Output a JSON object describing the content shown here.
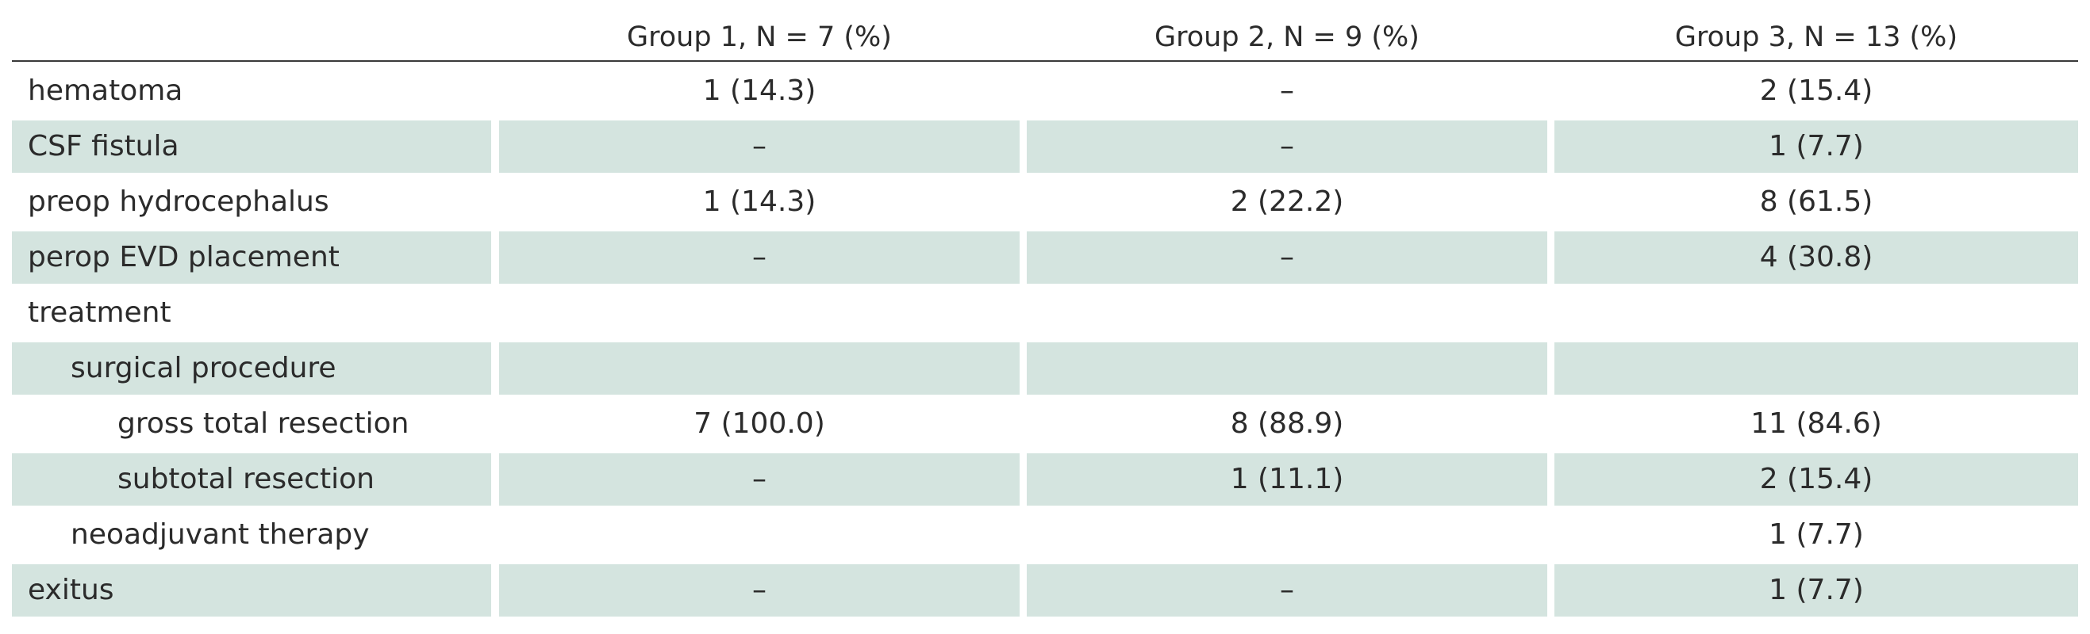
{
  "header": {
    "columns": [
      "",
      "Group 1, N = 7 (%)",
      "Group 2, N = 9 (%)",
      "Group 3, N = 13 (%)"
    ]
  },
  "rows": [
    {
      "label": "hematoma",
      "level": 0,
      "shaded": false,
      "values": [
        "1 (14.3)",
        "–",
        "2 (15.4)"
      ]
    },
    {
      "label": "CSF fistula",
      "level": 0,
      "shaded": true,
      "values": [
        "–",
        "–",
        "1 (7.7)"
      ]
    },
    {
      "label": "preop hydrocephalus",
      "level": 0,
      "shaded": false,
      "values": [
        "1 (14.3)",
        "2 (22.2)",
        "8 (61.5)"
      ]
    },
    {
      "label": "perop EVD placement",
      "level": 0,
      "shaded": true,
      "values": [
        "–",
        "–",
        "4 (30.8)"
      ]
    },
    {
      "label": "treatment",
      "level": 0,
      "shaded": false,
      "values": [
        "",
        "",
        ""
      ]
    },
    {
      "label": "surgical procedure",
      "level": 1,
      "shaded": true,
      "values": [
        "",
        "",
        ""
      ]
    },
    {
      "label": "gross total resection",
      "level": 2,
      "shaded": false,
      "values": [
        "7 (100.0)",
        "8 (88.9)",
        "11 (84.6)"
      ]
    },
    {
      "label": "subtotal resection",
      "level": 2,
      "shaded": true,
      "values": [
        "–",
        "1 (11.1)",
        "2 (15.4)"
      ]
    },
    {
      "label": "neoadjuvant therapy",
      "level": 1,
      "shaded": false,
      "values": [
        "",
        "",
        "1 (7.7)"
      ]
    },
    {
      "label": "exitus",
      "level": 0,
      "shaded": true,
      "values": [
        "–",
        "–",
        "1 (7.7)"
      ]
    }
  ],
  "colors": {
    "shade": "#d4e4df",
    "text": "#2b2b2b",
    "rule": "#3a3a3a"
  }
}
